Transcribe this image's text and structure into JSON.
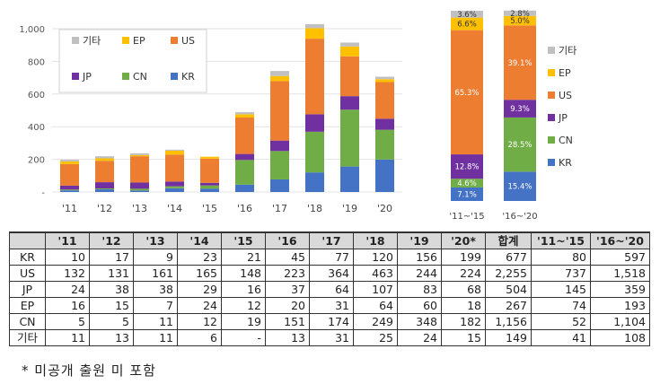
{
  "colors": {
    "KR": "#4472c4",
    "CN": "#70ad47",
    "JP": "#7030a0",
    "EP": "#ffc000",
    "US": "#ed7d31",
    "기타": "#c0c0c0"
  },
  "chart_data": [
    {
      "type": "bar",
      "stacked": true,
      "categories": [
        "'11",
        "'12",
        "'13",
        "'14",
        "'15",
        "'16",
        "'17",
        "'18",
        "'19",
        "'20"
      ],
      "ylim": [
        0,
        1000
      ],
      "yticks": [
        "-",
        "200",
        "400",
        "600",
        "800",
        "1,000"
      ],
      "series": [
        {
          "name": "KR",
          "values": [
            10,
            17,
            9,
            23,
            21,
            45,
            77,
            120,
            156,
            199
          ]
        },
        {
          "name": "CN",
          "values": [
            5,
            5,
            11,
            12,
            19,
            151,
            174,
            249,
            348,
            182
          ]
        },
        {
          "name": "JP",
          "values": [
            24,
            38,
            38,
            29,
            16,
            37,
            64,
            107,
            83,
            68
          ]
        },
        {
          "name": "US",
          "values": [
            132,
            131,
            161,
            165,
            148,
            223,
            364,
            463,
            244,
            224
          ]
        },
        {
          "name": "EP",
          "values": [
            16,
            15,
            7,
            24,
            12,
            20,
            31,
            64,
            60,
            18
          ]
        },
        {
          "name": "기타",
          "values": [
            11,
            13,
            11,
            6,
            0,
            13,
            31,
            25,
            24,
            15
          ]
        }
      ],
      "legend": {
        "position": "top-left",
        "rows": [
          [
            "기타",
            "EP",
            "US"
          ],
          [
            "JP",
            "CN",
            "KR"
          ]
        ]
      }
    },
    {
      "type": "bar",
      "stacked": true,
      "percent": true,
      "categories": [
        "'11~'15",
        "'16~'20"
      ],
      "series": [
        {
          "name": "KR",
          "values": [
            7.1,
            15.4
          ],
          "labels": [
            "7.1%",
            "15.4%"
          ]
        },
        {
          "name": "CN",
          "values": [
            4.6,
            28.5
          ],
          "labels": [
            "4.6%",
            "28.5%"
          ]
        },
        {
          "name": "JP",
          "values": [
            12.8,
            9.3
          ],
          "labels": [
            "12.8%",
            "9.3%"
          ]
        },
        {
          "name": "US",
          "values": [
            65.3,
            39.1
          ],
          "labels": [
            "65.3%",
            "39.1%"
          ]
        },
        {
          "name": "EP",
          "values": [
            6.6,
            5.0
          ],
          "labels": [
            "6.6%",
            "5.0%"
          ]
        },
        {
          "name": "기타",
          "values": [
            3.6,
            2.8
          ],
          "labels": [
            "3.6%",
            "2.8%"
          ]
        }
      ],
      "legend": {
        "position": "right",
        "order": [
          "기타",
          "EP",
          "US",
          "JP",
          "CN",
          "KR"
        ]
      }
    }
  ],
  "table": {
    "header": [
      "",
      "'11",
      "'12",
      "'13",
      "'14",
      "'15",
      "'16",
      "'17",
      "'18",
      "'19",
      "'20*",
      "합계",
      "'11~'15",
      "'16~'20"
    ],
    "rows": [
      [
        "KR",
        "10",
        "17",
        "9",
        "23",
        "21",
        "45",
        "77",
        "120",
        "156",
        "199",
        "677",
        "80",
        "597"
      ],
      [
        "US",
        "132",
        "131",
        "161",
        "165",
        "148",
        "223",
        "364",
        "463",
        "244",
        "224",
        "2,255",
        "737",
        "1,518"
      ],
      [
        "JP",
        "24",
        "38",
        "38",
        "29",
        "16",
        "37",
        "64",
        "107",
        "83",
        "68",
        "504",
        "145",
        "359"
      ],
      [
        "EP",
        "16",
        "15",
        "7",
        "24",
        "12",
        "20",
        "31",
        "64",
        "60",
        "18",
        "267",
        "74",
        "193"
      ],
      [
        "CN",
        "5",
        "5",
        "11",
        "12",
        "19",
        "151",
        "174",
        "249",
        "348",
        "182",
        "1,156",
        "52",
        "1,104"
      ],
      [
        "기타",
        "11",
        "13",
        "11",
        "6",
        "-",
        "13",
        "31",
        "25",
        "24",
        "15",
        "149",
        "41",
        "108"
      ]
    ]
  },
  "footnote": "* 미공개 출원 미 포함"
}
